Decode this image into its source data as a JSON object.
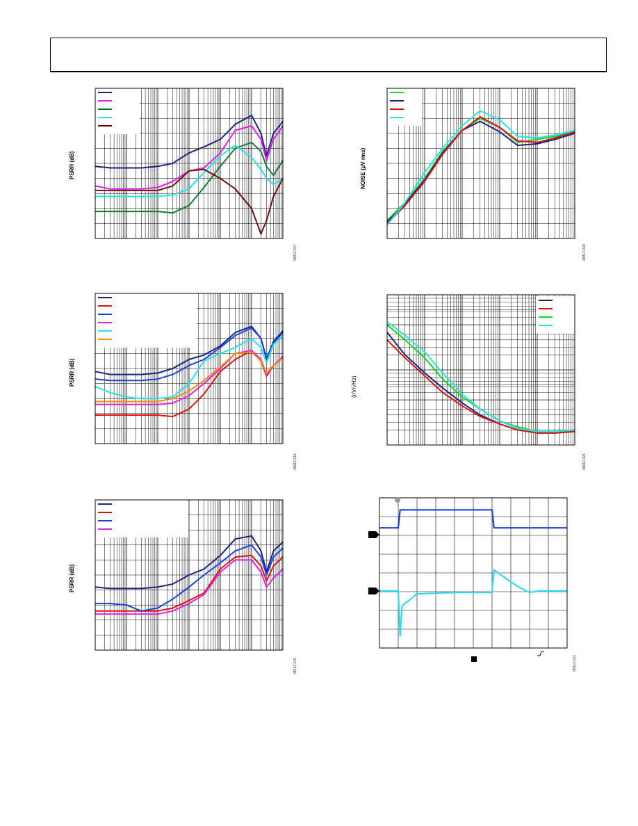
{
  "chart_data": [
    {
      "type": "line",
      "ylabel": "PSRR (dB)",
      "fig_id": "08912-017",
      "xscale": "log",
      "ylabel_visible": true,
      "legend_placement": "top-left",
      "grid": true,
      "x": [
        10,
        30,
        100,
        300,
        1000,
        3000,
        10000,
        30000,
        100000,
        300000,
        1000000,
        2000000,
        3000000,
        5000000,
        10000000
      ],
      "ylim": [
        0,
        100
      ],
      "series": [
        {
          "color": "#1a237e",
          "values": [
            48,
            47,
            47,
            47,
            48,
            50,
            57,
            61,
            66,
            76,
            82,
            70,
            55,
            70,
            78
          ]
        },
        {
          "color": "#e020e0",
          "values": [
            35,
            33,
            33,
            33,
            34,
            38,
            45,
            47,
            57,
            72,
            75,
            66,
            52,
            66,
            75
          ]
        },
        {
          "color": "#127a3a",
          "values": [
            18,
            18,
            18,
            18,
            18,
            17,
            22,
            34,
            48,
            60,
            64,
            58,
            48,
            42,
            52
          ]
        },
        {
          "color": "#20e6e6",
          "values": [
            28,
            28,
            28,
            28,
            28,
            29,
            33,
            44,
            55,
            62,
            54,
            46,
            40,
            36,
            40
          ]
        },
        {
          "color": "#6b0f0f",
          "values": [
            32,
            32,
            32,
            32,
            32,
            35,
            45,
            46,
            40,
            33,
            20,
            3,
            12,
            28,
            40
          ]
        }
      ]
    },
    {
      "type": "line",
      "ylabel": "NOISE (µV rms)",
      "fig_id": "08912-020",
      "xscale": "log",
      "legend_placement": "top-left",
      "grid": true,
      "x": [
        1,
        3,
        10,
        30,
        100,
        300,
        1000,
        3000,
        10000,
        30000,
        100000
      ],
      "ylim": [
        0,
        100
      ],
      "series": [
        {
          "color": "#20d020",
          "values": [
            12,
            24,
            40,
            58,
            72,
            80,
            74,
            64,
            66,
            68,
            71
          ]
        },
        {
          "color": "#1a237e",
          "values": [
            11,
            23,
            39,
            57,
            72,
            78,
            71,
            62,
            63,
            66,
            70
          ]
        },
        {
          "color": "#e01010",
          "values": [
            10,
            22,
            38,
            56,
            72,
            81,
            74,
            65,
            64,
            67,
            71
          ]
        },
        {
          "color": "#20e6e6",
          "values": [
            9,
            24,
            44,
            60,
            75,
            85,
            79,
            68,
            67,
            69,
            72
          ]
        }
      ]
    },
    {
      "type": "line",
      "ylabel": "PSRR (dB)",
      "fig_id": "08912-018",
      "xscale": "log",
      "legend_placement": "top-left",
      "grid": true,
      "x": [
        10,
        30,
        100,
        300,
        1000,
        3000,
        10000,
        30000,
        100000,
        300000,
        1000000,
        2000000,
        3000000,
        5000000,
        10000000
      ],
      "ylim": [
        0,
        100
      ],
      "series": [
        {
          "color": "#1a237e",
          "values": [
            48,
            46,
            46,
            46,
            47,
            50,
            56,
            59,
            65,
            74,
            78,
            70,
            56,
            68,
            75
          ]
        },
        {
          "color": "#e01010",
          "values": [
            19,
            19,
            19,
            19,
            19,
            18,
            23,
            33,
            48,
            56,
            62,
            55,
            45,
            52,
            57
          ]
        },
        {
          "color": "#1a40e0",
          "values": [
            43,
            42,
            42,
            42,
            43,
            46,
            52,
            56,
            64,
            72,
            77,
            70,
            57,
            67,
            74
          ]
        },
        {
          "color": "#e020e0",
          "values": [
            26,
            26,
            26,
            26,
            26,
            27,
            32,
            40,
            50,
            60,
            62,
            56,
            46,
            52,
            58
          ]
        },
        {
          "color": "#20e6e6",
          "values": [
            38,
            34,
            31,
            30,
            30,
            31,
            40,
            55,
            60,
            64,
            70,
            64,
            54,
            66,
            72
          ]
        },
        {
          "color": "#ff8800",
          "values": [
            28,
            28,
            28,
            28,
            28,
            30,
            35,
            42,
            51,
            60,
            61,
            55,
            47,
            52,
            57
          ]
        }
      ]
    },
    {
      "type": "line",
      "ylabel": "(nV/√Hz)",
      "fig_id": "08912-021",
      "xscale": "log",
      "yscale": "log",
      "legend_placement": "top-right",
      "grid": true,
      "x": [
        10,
        30,
        100,
        300,
        1000,
        3000,
        10000,
        30000,
        100000,
        300000,
        1000000
      ],
      "ylim": [
        0,
        100
      ],
      "series": [
        {
          "color": "#1a237e",
          "values": [
            75,
            60,
            48,
            38,
            28,
            20,
            14,
            10,
            8,
            8,
            9
          ]
        },
        {
          "color": "#e01010",
          "values": [
            70,
            58,
            46,
            35,
            26,
            19,
            14,
            10,
            8,
            8,
            9
          ]
        },
        {
          "color": "#20d020",
          "values": [
            80,
            70,
            58,
            44,
            32,
            24,
            16,
            12,
            9,
            9,
            10
          ]
        },
        {
          "color": "#20e6e6",
          "values": [
            82,
            73,
            62,
            48,
            34,
            24,
            16,
            11,
            9,
            9,
            10
          ]
        }
      ]
    },
    {
      "type": "line",
      "ylabel": "PSRR (dB)",
      "fig_id": "08912-019",
      "xscale": "log",
      "legend_placement": "top-left",
      "grid": true,
      "x": [
        10,
        30,
        100,
        300,
        1000,
        3000,
        10000,
        30000,
        100000,
        300000,
        1000000,
        2000000,
        3000000,
        5000000,
        10000000
      ],
      "ylim": [
        0,
        100
      ],
      "series": [
        {
          "color": "#1a237e",
          "values": [
            42,
            41,
            41,
            41,
            42,
            44,
            50,
            54,
            63,
            74,
            76,
            66,
            52,
            66,
            72
          ]
        },
        {
          "color": "#e01010",
          "values": [
            26,
            26,
            26,
            26,
            26,
            28,
            33,
            38,
            54,
            62,
            63,
            56,
            46,
            56,
            62
          ]
        },
        {
          "color": "#1a40e0",
          "values": [
            31,
            31,
            30,
            26,
            28,
            34,
            42,
            50,
            58,
            66,
            70,
            62,
            50,
            62,
            68
          ]
        },
        {
          "color": "#e020e0",
          "values": [
            24,
            24,
            24,
            24,
            24,
            26,
            31,
            37,
            52,
            60,
            60,
            52,
            42,
            48,
            54
          ]
        }
      ]
    },
    {
      "type": "line",
      "kind": "scope",
      "fig_id": "08912-022",
      "grid": true,
      "x": [
        0,
        0.5,
        1.0,
        1.1,
        1.2,
        2.0,
        4.0,
        5.5,
        6.0,
        6.1,
        7.0,
        7.5,
        8.0,
        8.5,
        9.0,
        10.0
      ],
      "ylim": [
        0,
        100
      ],
      "series": [
        {
          "color": "#1a40e0",
          "values": [
            80,
            80,
            80,
            92,
            92,
            92,
            92,
            92,
            92,
            80,
            80,
            80,
            80,
            80,
            80,
            80
          ]
        },
        {
          "color": "#30d8f0",
          "values": [
            38,
            38,
            38,
            8,
            28,
            36,
            37,
            37,
            37,
            52,
            44,
            40,
            37,
            38,
            38,
            38
          ]
        }
      ]
    }
  ]
}
